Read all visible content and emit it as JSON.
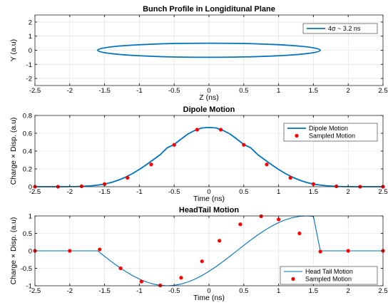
{
  "colors": {
    "line": "#0072BD",
    "marker": "#FF0000",
    "grid": "#DCDCDC",
    "axis": "#262626"
  },
  "chart_data": [
    {
      "type": "line",
      "title": "Bunch Profile in Longiditunal Plane",
      "xlabel": "Z (ns)",
      "ylabel": "Y (a.u)",
      "xlim": [
        -2.5,
        2.5
      ],
      "ylim": [
        -2.5,
        2.5
      ],
      "xticks": [
        -2.5,
        -2,
        -1.5,
        -1,
        -0.5,
        0,
        0.5,
        1,
        1.5,
        2,
        2.5
      ],
      "xtick_labels": [
        "-2.5",
        "-2",
        "-1.5",
        "-1",
        "-0.5",
        "0",
        "0.5",
        "1",
        "1.5",
        "2",
        "2.5"
      ],
      "yticks": [
        -2,
        -1,
        0,
        1,
        2
      ],
      "ytick_labels": [
        "-2",
        "-1",
        "0",
        "1",
        "2"
      ],
      "grid": true,
      "legend_position": "top-right",
      "series": [
        {
          "name": "4σ ~ 3.2 ns",
          "shape": "ellipse",
          "center": [
            0,
            0
          ],
          "half_width": 1.6,
          "half_height": 0.5
        }
      ]
    },
    {
      "type": "line",
      "title": "Dipole Motion",
      "xlabel": "Time (ns)",
      "ylabel": "Charge × Disp. (a.u)",
      "xlim": [
        -2.5,
        2.5
      ],
      "ylim": [
        0,
        0.8
      ],
      "xticks": [
        -2.5,
        -2,
        -1.5,
        -1,
        -0.5,
        0,
        0.5,
        1,
        1.5,
        2,
        2.5
      ],
      "xtick_labels": [
        "-2.5",
        "-2",
        "-1.5",
        "-1",
        "-0.5",
        "0",
        "0.5",
        "1",
        "1.5",
        "2",
        "2.5"
      ],
      "yticks": [
        0,
        0.2,
        0.4,
        0.6,
        0.8
      ],
      "ytick_labels": [
        "0",
        "0.2",
        "0.4",
        "0.6",
        "0.8"
      ],
      "grid": true,
      "legend_position": "top-right",
      "series": [
        {
          "name": "Dipole Motion",
          "style": "line",
          "x": [
            -2.5,
            -2.4,
            -2.3,
            -2.2,
            -2.1,
            -2.0,
            -1.9,
            -1.8,
            -1.7,
            -1.6,
            -1.5,
            -1.4,
            -1.3,
            -1.2,
            -1.1,
            -1.0,
            -0.9,
            -0.8,
            -0.7,
            -0.6,
            -0.5,
            -0.4,
            -0.3,
            -0.2,
            -0.1,
            0.0,
            0.1,
            0.2,
            0.3,
            0.4,
            0.5,
            0.6,
            0.7,
            0.8,
            0.9,
            1.0,
            1.1,
            1.2,
            1.3,
            1.4,
            1.5,
            1.6,
            1.7,
            1.8,
            1.9,
            2.0,
            2.1,
            2.2,
            2.3,
            2.4,
            2.5
          ],
          "y": [
            0.0,
            0.0,
            0.0,
            0.0,
            0.0,
            0.001,
            0.002,
            0.005,
            0.01,
            0.018,
            0.03,
            0.048,
            0.074,
            0.107,
            0.147,
            0.194,
            0.247,
            0.303,
            0.36,
            0.437,
            0.474,
            0.535,
            0.593,
            0.633,
            0.66,
            0.665,
            0.66,
            0.633,
            0.593,
            0.535,
            0.474,
            0.437,
            0.36,
            0.303,
            0.247,
            0.194,
            0.147,
            0.107,
            0.074,
            0.048,
            0.03,
            0.018,
            0.01,
            0.005,
            0.002,
            0.001,
            0.0,
            0.0,
            0.0,
            0.0,
            0.0
          ]
        },
        {
          "name": "Sampled Motion",
          "style": "marker",
          "x": [
            -2.5,
            -2.17,
            -1.83,
            -1.5,
            -1.17,
            -0.83,
            -0.5,
            -0.17,
            0.17,
            0.5,
            0.83,
            1.17,
            1.5,
            1.83,
            2.17,
            2.5
          ],
          "y": [
            0.0,
            0.0,
            0.005,
            0.03,
            0.1,
            0.25,
            0.47,
            0.64,
            0.64,
            0.47,
            0.25,
            0.1,
            0.03,
            0.005,
            0.0,
            0.0
          ]
        }
      ]
    },
    {
      "type": "line",
      "title": "HeadTail Motion",
      "xlabel": "Time (ns)",
      "ylabel": "Charge × Disp. (a.u)",
      "xlim": [
        -2.5,
        2.5
      ],
      "ylim": [
        -1,
        1
      ],
      "xticks": [
        -2.5,
        -2,
        -1.5,
        -1,
        -0.5,
        0,
        0.5,
        1,
        1.5,
        2,
        2.5
      ],
      "xtick_labels": [
        "-2.5",
        "-2",
        "-1.5",
        "-1",
        "-0.5",
        "0",
        "0.5",
        "1",
        "1.5",
        "2",
        "2.5"
      ],
      "yticks": [
        -1,
        -0.5,
        0,
        0.5,
        1
      ],
      "ytick_labels": [
        "-1",
        "-0.5",
        "0",
        "0.5",
        "1"
      ],
      "grid": true,
      "legend_position": "bottom-right",
      "series": [
        {
          "name": "Head Tail Motion",
          "style": "line",
          "x": [
            -2.5,
            -1.6,
            -1.5,
            -1.4,
            -1.3,
            -1.2,
            -1.1,
            -1.0,
            -0.9,
            -0.8,
            -0.7,
            -0.6,
            -0.5,
            -0.4,
            -0.3,
            -0.2,
            -0.1,
            0.0,
            0.1,
            0.2,
            0.3,
            0.4,
            0.5,
            0.6,
            0.7,
            0.8,
            0.9,
            1.0,
            1.1,
            1.2,
            1.3,
            1.4,
            1.5,
            1.6,
            2.5
          ],
          "y": [
            0.0,
            0.0,
            -0.156,
            -0.309,
            -0.454,
            -0.588,
            -0.707,
            -0.809,
            -0.891,
            -0.951,
            -0.988,
            -1.0,
            -0.988,
            -0.951,
            -0.891,
            -0.809,
            -0.707,
            -0.588,
            -0.454,
            -0.309,
            -0.156,
            0.0,
            0.156,
            0.309,
            0.454,
            0.588,
            0.707,
            0.809,
            0.891,
            0.951,
            0.988,
            1.0,
            0.988,
            0.0,
            0.0
          ]
        },
        {
          "name": "Sampled Motion",
          "style": "marker",
          "x": [
            -2.5,
            -2.0,
            -1.57,
            -1.27,
            -0.97,
            -0.7,
            -0.4,
            -0.1,
            0.15,
            0.45,
            0.75,
            1.0,
            1.3,
            1.6,
            2.0,
            2.5
          ],
          "y": [
            0.0,
            0.0,
            0.04,
            -0.5,
            -0.88,
            -0.99,
            -0.77,
            -0.3,
            0.29,
            0.76,
            0.99,
            0.9,
            0.5,
            -0.02,
            0.0,
            0.0
          ]
        }
      ]
    }
  ]
}
